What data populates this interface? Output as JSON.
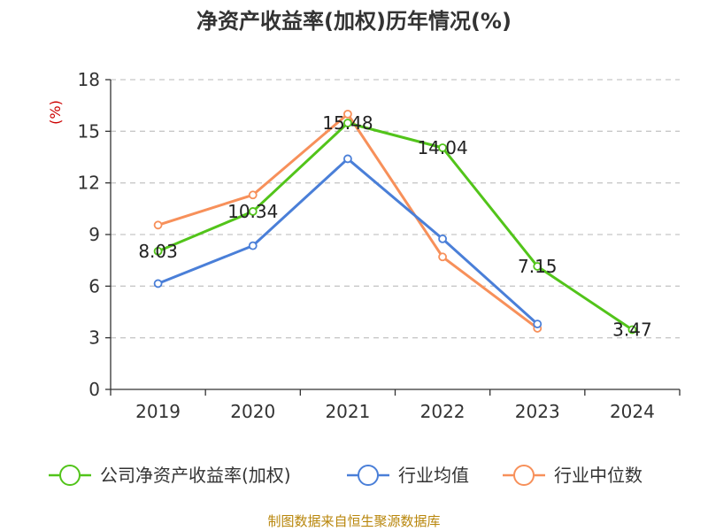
{
  "chart_data": {
    "type": "line",
    "title": "净资产收益率(加权)历年情况(%)",
    "ylabel": "(%)",
    "xlabel": "",
    "ylim": [
      0,
      18
    ],
    "yticks": [
      0,
      3,
      6,
      9,
      12,
      15,
      18
    ],
    "categories": [
      "2019",
      "2020",
      "2021",
      "2022",
      "2023",
      "2024"
    ],
    "grid": true,
    "legend_position": "bottom",
    "series": [
      {
        "name": "公司净资产收益率(加权)",
        "color": "#52c41a",
        "values": [
          8.03,
          10.34,
          15.48,
          14.04,
          7.15,
          3.47
        ],
        "labels": [
          "8.03",
          "10.34",
          "15.48",
          "14.04",
          "7.15",
          "3.47"
        ]
      },
      {
        "name": "行业均值",
        "color": "#4a7fd8",
        "values": [
          6.15,
          8.35,
          13.4,
          8.75,
          3.8,
          null
        ]
      },
      {
        "name": "行业中位数",
        "color": "#f7905a",
        "values": [
          9.55,
          11.3,
          16.0,
          7.7,
          3.55,
          null
        ]
      }
    ],
    "source": "制图数据来自恒生聚源数据库"
  }
}
